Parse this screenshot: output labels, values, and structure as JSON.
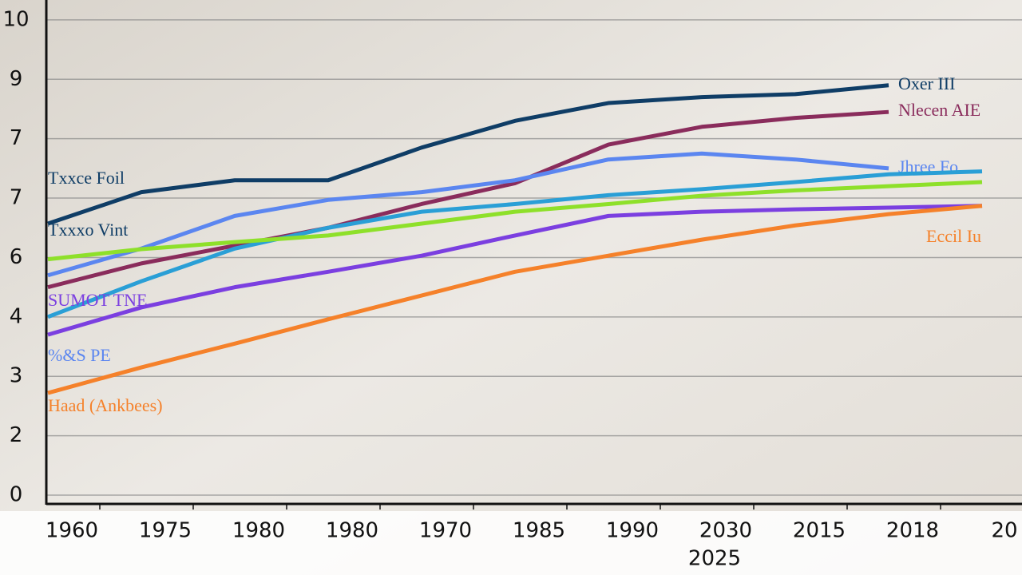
{
  "chart_data": {
    "type": "line",
    "categories": [
      "1960",
      "1975",
      "1980",
      "1980",
      "1970",
      "1985",
      "1990",
      "2030",
      "2015",
      "2018",
      "20"
    ],
    "annotations": [
      "2025",
      "Txxce Foil",
      "Txxxo Vint",
      "SUMOT TNE",
      "%&S PE",
      "Haad (Ankbees)"
    ],
    "ylim": [
      0,
      8.2
    ],
    "yticks": [
      {
        "value": 0,
        "label": "0"
      },
      {
        "value": 1,
        "label": "2"
      },
      {
        "value": 2,
        "label": "3"
      },
      {
        "value": 3,
        "label": "4"
      },
      {
        "value": 4,
        "label": "6"
      },
      {
        "value": 5,
        "label": "7"
      },
      {
        "value": 6,
        "label": "7"
      },
      {
        "value": 7,
        "label": "9"
      },
      {
        "value": 8,
        "label": "10"
      }
    ],
    "grid": true,
    "series": [
      {
        "name": "Oxer III",
        "color": "#0f3d66",
        "values": [
          4.57,
          5.1,
          5.3,
          5.3,
          5.85,
          6.3,
          6.6,
          6.7,
          6.75,
          6.9,
          null
        ]
      },
      {
        "name": "Nlecen AIE",
        "color": "#8a2c5c",
        "values": [
          3.5,
          3.9,
          4.2,
          4.5,
          4.9,
          5.25,
          5.9,
          6.2,
          6.35,
          6.45,
          null
        ]
      },
      {
        "name": "Jhree Fo",
        "color": "#5b86f0",
        "values": [
          3.7,
          4.15,
          4.7,
          4.97,
          5.1,
          5.3,
          5.65,
          5.75,
          5.65,
          5.5,
          null
        ]
      },
      {
        "color": "#2a9fd6",
        "values": [
          3.0,
          3.6,
          4.15,
          4.5,
          4.77,
          4.9,
          5.05,
          5.15,
          5.27,
          5.4,
          5.45
        ]
      },
      {
        "color": "#8ee02a",
        "values": [
          3.97,
          4.14,
          4.26,
          4.37,
          4.57,
          4.77,
          4.9,
          5.04,
          5.13,
          5.2,
          5.27
        ]
      },
      {
        "color": "#7b3fe0",
        "values": [
          2.7,
          3.16,
          3.5,
          3.76,
          4.03,
          4.37,
          4.7,
          4.77,
          4.81,
          4.84,
          4.87
        ]
      },
      {
        "name": "Eccil Iu",
        "color": "#f5812a",
        "values": [
          1.72,
          2.15,
          2.55,
          2.96,
          3.36,
          3.76,
          4.03,
          4.3,
          4.54,
          4.73,
          4.87
        ]
      }
    ]
  }
}
